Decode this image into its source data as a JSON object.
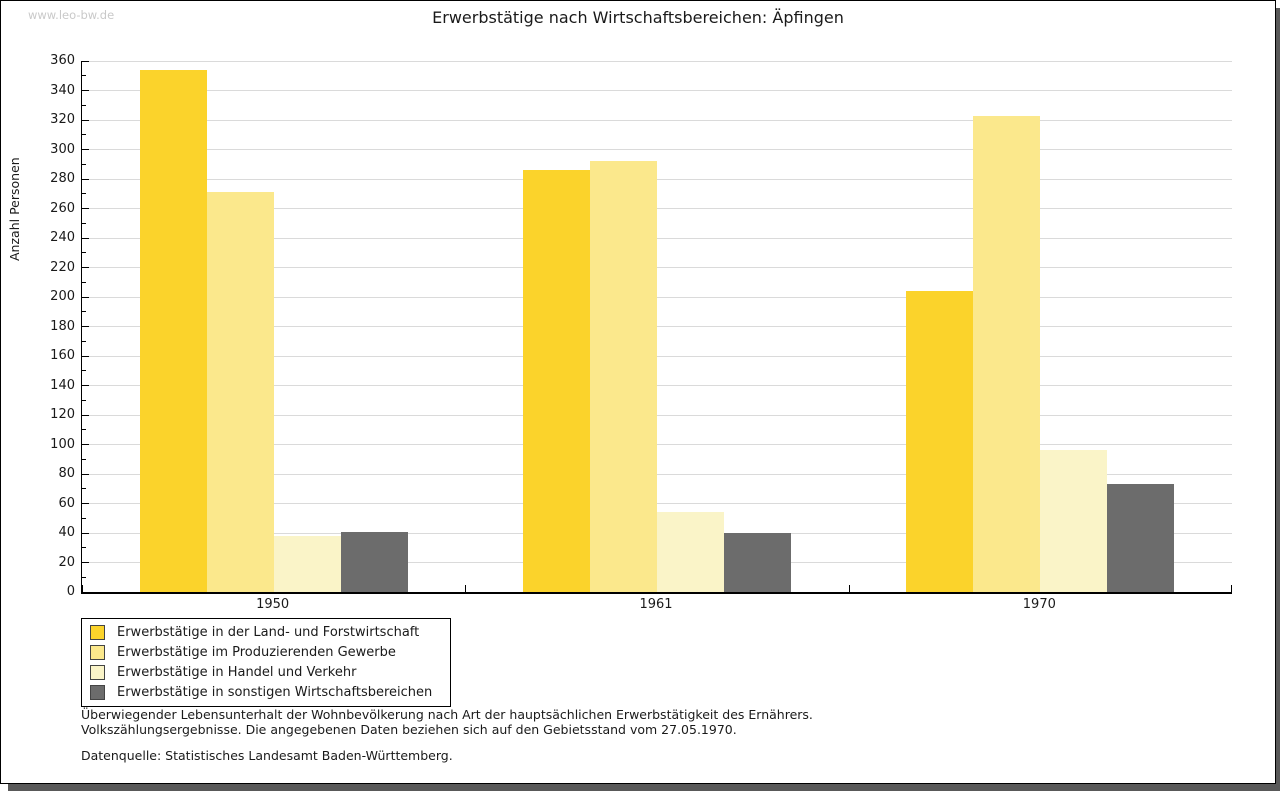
{
  "watermark": "www.leo-bw.de",
  "colors": {
    "grid": "#DADADA",
    "axis": "#000000",
    "watermark": "#C9C9C9",
    "shadow": "#595959",
    "series": [
      "#FBD32B",
      "#FBE88C",
      "#FAF4C8",
      "#6C6C6C"
    ]
  },
  "chart_data": {
    "type": "bar",
    "title": "Erwerbstätige nach Wirtschaftsbereichen: Äpfingen",
    "xlabel": "",
    "ylabel": "Anzahl Personen",
    "ylim": [
      0,
      360
    ],
    "ytick_step": 20,
    "ytick_minor_step": 10,
    "grid": true,
    "legend_position": "bottom-left",
    "categories": [
      "1950",
      "1961",
      "1970"
    ],
    "series": [
      {
        "name": "Erwerbstätige in der Land- und Forstwirtschaft",
        "color": "#FBD32B",
        "values": [
          354,
          286,
          204
        ]
      },
      {
        "name": "Erwerbstätige im Produzierenden Gewerbe",
        "color": "#FBE88C",
        "values": [
          271,
          292,
          323
        ]
      },
      {
        "name": "Erwerbstätige in Handel und Verkehr",
        "color": "#FAF4C8",
        "values": [
          38,
          54,
          96
        ]
      },
      {
        "name": "Erwerbstätige in sonstigen Wirtschaftsbereichen",
        "color": "#6C6C6C",
        "values": [
          41,
          40,
          73
        ]
      }
    ]
  },
  "footnotes": [
    "Überwiegender Lebensunterhalt der Wohnbevölkerung nach Art der hauptsächlichen Erwerbstätigkeit des Ernährers.",
    "Volkszählungsergebnisse. Die angegebenen Daten beziehen sich auf den Gebietsstand vom 27.05.1970."
  ],
  "source": "Datenquelle: Statistisches Landesamt Baden-Württemberg."
}
